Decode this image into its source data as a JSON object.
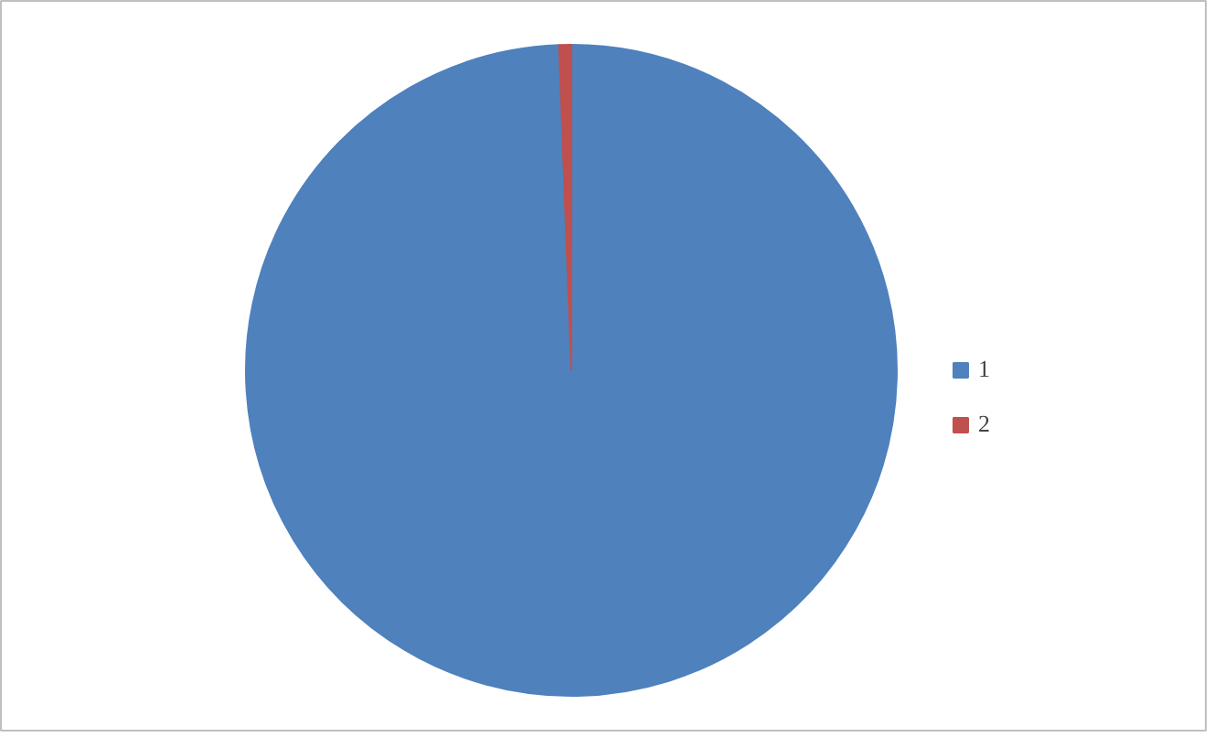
{
  "chart_data": {
    "type": "pie",
    "categories": [
      "1",
      "2"
    ],
    "values": [
      99.4,
      0.6
    ],
    "colors": [
      "#4f81bd",
      "#c0504d"
    ],
    "legend": "right"
  }
}
